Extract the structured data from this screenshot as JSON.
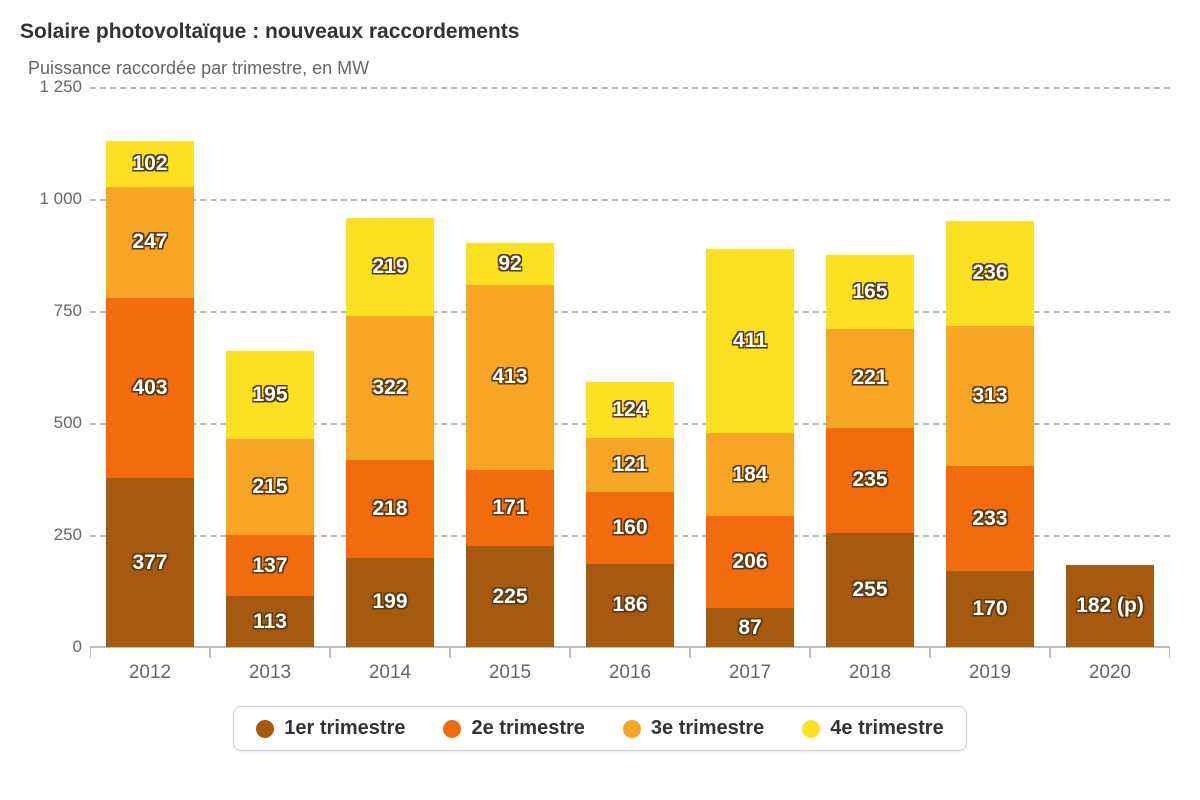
{
  "chart": {
    "type": "stacked-bar",
    "title": "Solaire photovoltaïque : nouveaux raccordements",
    "subtitle": "Puissance raccordée par trimestre, en MW",
    "background_color": "#ffffff",
    "grid_color": "#b8b8b8",
    "title_fontsize": 21,
    "subtitle_fontsize": 18,
    "label_fontsize": 21,
    "tick_fontsize": 19,
    "y_axis": {
      "min": 0,
      "max": 1250,
      "ticks": [
        {
          "value": 0,
          "label": "0"
        },
        {
          "value": 250,
          "label": "250"
        },
        {
          "value": 500,
          "label": "500"
        },
        {
          "value": 750,
          "label": "750"
        },
        {
          "value": 1000,
          "label": "1 000"
        },
        {
          "value": 1250,
          "label": "1 250"
        }
      ]
    },
    "series": [
      {
        "key": "t1",
        "label": "1er trimestre",
        "color": "#a65a10"
      },
      {
        "key": "t2",
        "label": "2e trimestre",
        "color": "#f26c0d"
      },
      {
        "key": "t3",
        "label": "3e trimestre",
        "color": "#f7a524"
      },
      {
        "key": "t4",
        "label": "4e trimestre",
        "color": "#fbe122"
      }
    ],
    "categories": [
      "2012",
      "2013",
      "2014",
      "2015",
      "2016",
      "2017",
      "2018",
      "2019",
      "2020"
    ],
    "stacks": [
      {
        "year": "2012",
        "segments": [
          {
            "series": "t1",
            "value": 377,
            "label": "377"
          },
          {
            "series": "t2",
            "value": 403,
            "label": "403"
          },
          {
            "series": "t3",
            "value": 247,
            "label": "247"
          },
          {
            "series": "t4",
            "value": 102,
            "label": "102"
          }
        ]
      },
      {
        "year": "2013",
        "segments": [
          {
            "series": "t1",
            "value": 113,
            "label": "113"
          },
          {
            "series": "t2",
            "value": 137,
            "label": "137"
          },
          {
            "series": "t3",
            "value": 215,
            "label": "215"
          },
          {
            "series": "t4",
            "value": 195,
            "label": "195"
          }
        ]
      },
      {
        "year": "2014",
        "segments": [
          {
            "series": "t1",
            "value": 199,
            "label": "199"
          },
          {
            "series": "t2",
            "value": 218,
            "label": "218"
          },
          {
            "series": "t3",
            "value": 322,
            "label": "322"
          },
          {
            "series": "t4",
            "value": 219,
            "label": "219"
          }
        ]
      },
      {
        "year": "2015",
        "segments": [
          {
            "series": "t1",
            "value": 225,
            "label": "225"
          },
          {
            "series": "t2",
            "value": 171,
            "label": "171"
          },
          {
            "series": "t3",
            "value": 413,
            "label": "413"
          },
          {
            "series": "t4",
            "value": 92,
            "label": "92"
          }
        ]
      },
      {
        "year": "2016",
        "segments": [
          {
            "series": "t1",
            "value": 186,
            "label": "186"
          },
          {
            "series": "t2",
            "value": 160,
            "label": "160"
          },
          {
            "series": "t3",
            "value": 121,
            "label": "121"
          },
          {
            "series": "t4",
            "value": 124,
            "label": "124"
          }
        ]
      },
      {
        "year": "2017",
        "segments": [
          {
            "series": "t1",
            "value": 87,
            "label": "87"
          },
          {
            "series": "t2",
            "value": 206,
            "label": "206"
          },
          {
            "series": "t3",
            "value": 184,
            "label": "184"
          },
          {
            "series": "t4",
            "value": 411,
            "label": "411"
          }
        ]
      },
      {
        "year": "2018",
        "segments": [
          {
            "series": "t1",
            "value": 255,
            "label": "255"
          },
          {
            "series": "t2",
            "value": 235,
            "label": "235"
          },
          {
            "series": "t3",
            "value": 221,
            "label": "221"
          },
          {
            "series": "t4",
            "value": 165,
            "label": "165"
          }
        ]
      },
      {
        "year": "2019",
        "segments": [
          {
            "series": "t1",
            "value": 170,
            "label": "170"
          },
          {
            "series": "t2",
            "value": 233,
            "label": "233"
          },
          {
            "series": "t3",
            "value": 313,
            "label": "313"
          },
          {
            "series": "t4",
            "value": 236,
            "label": "236"
          }
        ]
      },
      {
        "year": "2020",
        "segments": [
          {
            "series": "t1",
            "value": 182,
            "label": "182 (p)"
          }
        ]
      }
    ]
  }
}
